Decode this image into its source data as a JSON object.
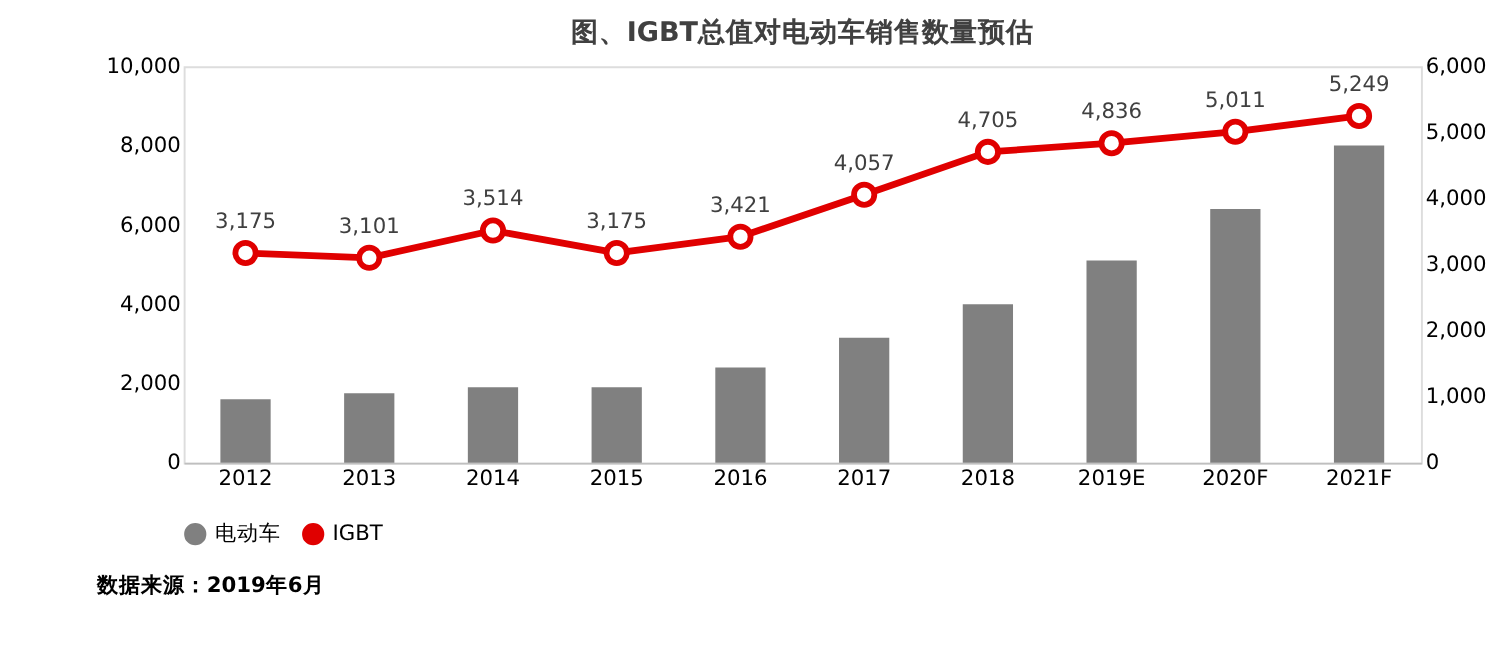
{
  "chart_data": {
    "type": "bar",
    "title": "图、IGBT总值对电动车销售数量预估",
    "categories": [
      "2012",
      "2013",
      "2014",
      "2015",
      "2016",
      "2017",
      "2018",
      "2019E",
      "2020F",
      "2021F"
    ],
    "series": [
      {
        "name": "电动车",
        "type": "bar",
        "color": "#808080",
        "values": [
          1600,
          1750,
          1900,
          1900,
          2400,
          3150,
          4000,
          5100,
          6400,
          8000
        ]
      },
      {
        "name": "IGBT",
        "type": "line",
        "axis": "y2",
        "color": "#e00000",
        "marker": "circle",
        "line_style": "solid",
        "values": [
          3175,
          3101,
          3514,
          3175,
          3421,
          4057,
          4705,
          4836,
          5011,
          5249
        ],
        "value_labels": [
          "3,175",
          "3,101",
          "3,514",
          "3,175",
          "3,421",
          "4,057",
          "4,705",
          "4,836",
          "5,011",
          "5,249"
        ]
      }
    ],
    "ylim": [
      0,
      10000
    ],
    "yticks": [
      0,
      {
        "value": 2000,
        "label": "2,000"
      },
      {
        "value": 4000,
        "label": "4,000"
      },
      {
        "value": 6000,
        "label": "6,000"
      },
      {
        "value": 8000,
        "label": "8,000"
      },
      {
        "value": 10000,
        "label": "10,000"
      }
    ],
    "y2lim": [
      0,
      6000
    ],
    "y2ticks": [
      0,
      {
        "value": 1000,
        "label": "1,000"
      },
      {
        "value": 2000,
        "label": "2,000"
      },
      {
        "value": 3000,
        "label": "3,000"
      },
      {
        "value": 4000,
        "label": "4,000"
      },
      {
        "value": 5000,
        "label": "5,000"
      },
      {
        "value": 6000,
        "label": "6,000"
      }
    ],
    "grid": false,
    "legend": "bottom",
    "annotations": [
      "数据来源：2019年6月"
    ]
  }
}
